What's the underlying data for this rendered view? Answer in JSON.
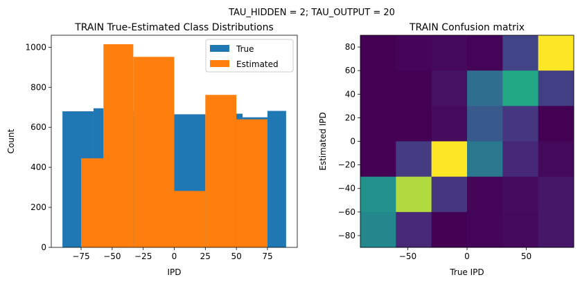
{
  "suptitle": "TAU_HIDDEN = 2; TAU_OUTPUT = 20",
  "chart_data": [
    {
      "type": "bar",
      "title": "TRAIN True-Estimated Class Distributions",
      "xlabel": "IPD",
      "ylabel": "Count",
      "xlim": [
        -99,
        99
      ],
      "ylim": [
        0,
        1060
      ],
      "xticks": [
        -75,
        -50,
        -25,
        0,
        25,
        50,
        75
      ],
      "xtick_labels": [
        "−75",
        "−50",
        "−25",
        "0",
        "25",
        "50",
        "75"
      ],
      "yticks": [
        0,
        200,
        400,
        600,
        800,
        1000
      ],
      "ytick_labels": [
        "0",
        "200",
        "400",
        "600",
        "800",
        "1000"
      ],
      "legend_position": "top-right",
      "series": [
        {
          "name": "True",
          "color": "#1f77b4",
          "bins": [
            {
              "x0": -90,
              "x1": -65,
              "value": 680
            },
            {
              "x0": -65,
              "x1": -57,
              "value": 695
            },
            {
              "x0": -57,
              "x1": -10,
              "value": 680
            },
            {
              "x0": 0,
              "x1": 25,
              "value": 665
            },
            {
              "x0": 48,
              "x1": 55,
              "value": 668
            },
            {
              "x0": 55,
              "x1": 75,
              "value": 650
            },
            {
              "x0": 75,
              "x1": 90,
              "value": 682
            }
          ]
        },
        {
          "name": "Estimated",
          "color": "#ff7f0e",
          "bins": [
            {
              "x0": -75,
              "x1": -57,
              "value": 445
            },
            {
              "x0": -57,
              "x1": -33,
              "value": 1015
            },
            {
              "x0": -33,
              "x1": 0,
              "value": 952
            },
            {
              "x0": 0,
              "x1": 25,
              "value": 282
            },
            {
              "x0": 25,
              "x1": 50,
              "value": 762
            },
            {
              "x0": 50,
              "x1": 75,
              "value": 640
            }
          ]
        }
      ]
    },
    {
      "type": "heatmap",
      "title": "TRAIN Confusion matrix",
      "xlabel": "True IPD",
      "ylabel": "Estimated IPD",
      "xlim": [
        -90,
        90
      ],
      "ylim": [
        -90,
        90
      ],
      "xticks": [
        -50,
        0,
        50
      ],
      "xtick_labels": [
        "−50",
        "0",
        "50"
      ],
      "yticks": [
        -80,
        -60,
        -40,
        -20,
        0,
        20,
        40,
        60,
        80
      ],
      "ytick_labels": [
        "−80",
        "−60",
        "−40",
        "−20",
        "0",
        "20",
        "40",
        "60",
        "80"
      ],
      "colormap": "viridis",
      "rows_top_to_bottom": [
        [
          0.0,
          0.02,
          0.03,
          0.01,
          0.25,
          1.0
        ],
        [
          0.0,
          0.0,
          0.06,
          0.45,
          0.75,
          0.23
        ],
        [
          0.0,
          0.0,
          0.04,
          0.35,
          0.2,
          0.0
        ],
        [
          0.0,
          0.22,
          1.0,
          0.5,
          0.14,
          0.03
        ],
        [
          0.63,
          0.93,
          0.2,
          0.02,
          0.04,
          0.08
        ],
        [
          0.58,
          0.15,
          0.0,
          0.01,
          0.03,
          0.08
        ]
      ]
    }
  ]
}
